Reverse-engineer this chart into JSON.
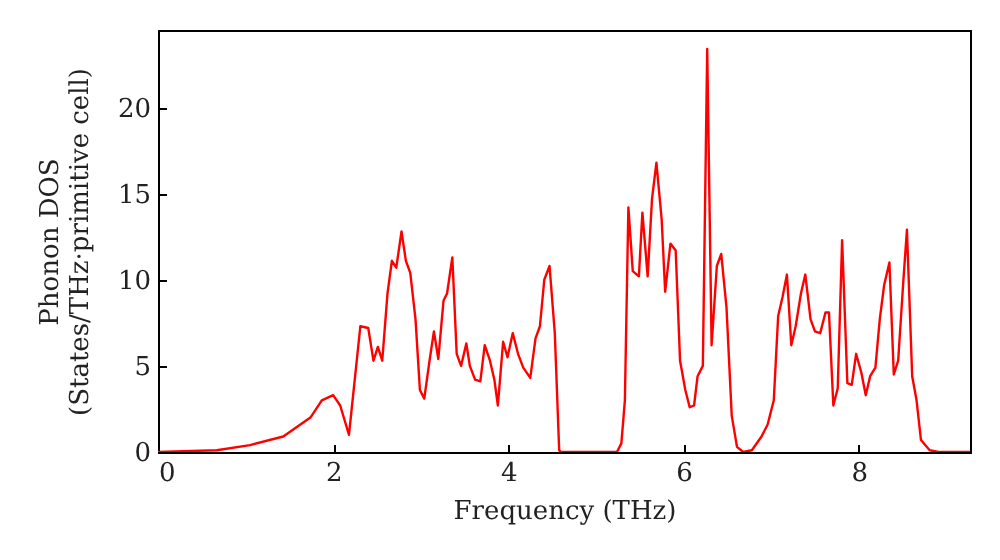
{
  "chart_data": {
    "type": "line",
    "xlabel": "Frequency (THz)",
    "ylabel": "Phonon DOS\n(States/THz·primitive cell)",
    "xlim": [
      0,
      9.27
    ],
    "xticks": [
      0,
      2,
      4,
      6,
      8
    ],
    "ylim": [
      0,
      24.5
    ],
    "yticks": [
      0,
      5,
      10,
      15,
      20
    ],
    "grid": false,
    "marker": "none",
    "line_style": "solid",
    "x": [
      0,
      0.67,
      1.05,
      1.43,
      1.74,
      1.87,
      2.0,
      2.08,
      2.18,
      2.31,
      2.4,
      2.46,
      2.51,
      2.56,
      2.62,
      2.67,
      2.72,
      2.78,
      2.83,
      2.88,
      2.94,
      2.99,
      3.04,
      3.1,
      3.15,
      3.2,
      3.26,
      3.3,
      3.36,
      3.41,
      3.46,
      3.52,
      3.56,
      3.62,
      3.68,
      3.73,
      3.79,
      3.84,
      3.88,
      3.94,
      3.99,
      4.05,
      4.11,
      4.17,
      4.25,
      4.31,
      4.36,
      4.41,
      4.47,
      4.53,
      4.58,
      4.6,
      5.24,
      5.29,
      5.33,
      5.37,
      5.42,
      5.49,
      5.53,
      5.59,
      5.64,
      5.69,
      5.75,
      5.79,
      5.85,
      5.91,
      5.96,
      6.02,
      6.07,
      6.12,
      6.16,
      6.22,
      6.27,
      6.32,
      6.38,
      6.43,
      6.49,
      6.55,
      6.61,
      6.68,
      6.78,
      6.89,
      6.96,
      7.03,
      7.08,
      7.13,
      7.18,
      7.23,
      7.28,
      7.34,
      7.39,
      7.45,
      7.5,
      7.56,
      7.62,
      7.66,
      7.71,
      7.76,
      7.81,
      7.87,
      7.92,
      7.97,
      8.03,
      8.08,
      8.13,
      8.19,
      8.24,
      8.29,
      8.35,
      8.4,
      8.45,
      8.51,
      8.55,
      8.61,
      8.66,
      8.71,
      8.81,
      8.91,
      9.27
    ],
    "series": [
      {
        "color": "#ff0000",
        "values": [
          0,
          0.1,
          0.4,
          0.9,
          2.0,
          3.0,
          3.3,
          2.7,
          1.0,
          7.3,
          7.2,
          5.3,
          6.1,
          5.3,
          9.2,
          11.1,
          10.7,
          12.8,
          11.1,
          10.4,
          7.7,
          3.6,
          3.1,
          5.3,
          7.0,
          5.4,
          8.8,
          9.2,
          11.3,
          5.7,
          5.0,
          6.3,
          5.0,
          4.2,
          4.1,
          6.2,
          5.3,
          4.2,
          2.7,
          6.4,
          5.5,
          6.9,
          5.7,
          4.9,
          4.3,
          6.6,
          7.3,
          10.0,
          10.8,
          6.9,
          0.1,
          0,
          0,
          0.5,
          3.0,
          14.2,
          10.5,
          10.2,
          13.9,
          10.2,
          14.7,
          16.8,
          13.5,
          9.3,
          12.1,
          11.7,
          5.3,
          3.6,
          2.6,
          2.7,
          4.4,
          5.0,
          23.4,
          6.2,
          10.8,
          11.5,
          8.4,
          2.1,
          0.3,
          0,
          0.1,
          0.9,
          1.6,
          3.0,
          7.9,
          9.0,
          10.3,
          6.2,
          7.3,
          9.2,
          10.3,
          7.7,
          7.0,
          6.9,
          8.1,
          8.1,
          2.7,
          3.7,
          12.3,
          4.0,
          3.9,
          5.7,
          4.6,
          3.3,
          4.4,
          4.9,
          7.7,
          9.7,
          11.0,
          4.5,
          5.3,
          10.0,
          12.9,
          4.4,
          3.0,
          0.7,
          0.1,
          0,
          0
        ]
      }
    ]
  }
}
